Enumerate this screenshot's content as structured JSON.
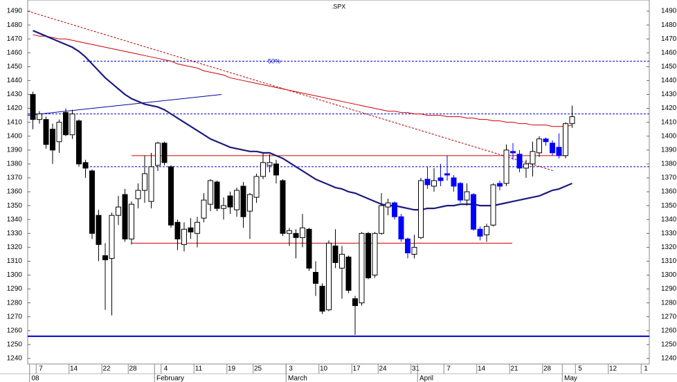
{
  "chart_data": {
    "type": "candlestick",
    "title": ".SPX",
    "categories": [
      null,
      "7",
      null,
      null,
      null,
      null,
      "14",
      null,
      null,
      null,
      null,
      "22",
      null,
      null,
      null,
      "28",
      null,
      null,
      null,
      null,
      "4",
      null,
      null,
      null,
      null,
      "11",
      null,
      null,
      null,
      null,
      "19",
      null,
      null,
      null,
      "25",
      null,
      null,
      null,
      null,
      "3",
      null,
      null,
      null,
      null,
      "10",
      null,
      null,
      null,
      null,
      "17",
      null,
      null,
      null,
      "24",
      null,
      null,
      null,
      null,
      "31",
      null,
      null,
      null,
      null,
      "7",
      null,
      null,
      null,
      null,
      "14",
      null,
      null,
      null,
      null,
      "21",
      null,
      null,
      null,
      null,
      "28",
      null,
      null,
      null,
      null,
      "5",
      null,
      null,
      null,
      null,
      "12",
      null,
      null,
      null,
      null,
      "1",
      null
    ],
    "month_categories": [
      "08",
      null,
      null,
      null,
      null,
      null,
      null,
      null,
      null,
      null,
      null,
      null,
      null,
      null,
      null,
      null,
      null,
      null,
      null,
      "February",
      null,
      null,
      null,
      null,
      null,
      null,
      null,
      null,
      null,
      null,
      null,
      null,
      null,
      null,
      null,
      null,
      null,
      null,
      null,
      "March",
      null,
      null,
      null,
      null,
      null,
      null,
      null,
      null,
      null,
      null,
      null,
      null,
      null,
      null,
      null,
      null,
      null,
      null,
      null,
      "April",
      null,
      null,
      null,
      null,
      null,
      null,
      null,
      null,
      null,
      null,
      null,
      null,
      null,
      null,
      null,
      null,
      null,
      null,
      null,
      null,
      null,
      "May",
      null,
      null,
      null,
      null,
      null,
      null,
      null,
      null,
      null,
      null,
      null,
      null,
      null
    ],
    "open": [
      1430,
      1412,
      1412,
      1405,
      1396,
      1417,
      1401,
      1411,
      1381,
      1375,
      1343,
      1314,
      1312,
      1343,
      1358,
      1326,
      1355,
      1361,
      1353,
      1379,
      1395,
      1378,
      1338,
      1322,
      1334,
      1330,
      1341,
      1351,
      1367,
      1348,
      1357,
      1347,
      1364,
      1346,
      1356,
      1371,
      1379,
      1380,
      1368,
      1330,
      1330,
      1327,
      1333,
      1302,
      1292,
      1275,
      1321,
      1305,
      1313,
      1283,
      1280,
      1330,
      1300,
      1330,
      1349,
      1352,
      1342,
      1326,
      1315,
      1327,
      1369,
      1364,
      1370,
      1373,
      1370,
      1366,
      1354,
      1358,
      1333,
      1329,
      1336,
      1366,
      1366,
      1389,
      1387,
      1377,
      1380,
      1388,
      1398,
      1395,
      1392,
      1386,
      1409,
      null,
      null,
      null,
      null,
      null,
      null,
      null,
      null,
      null,
      null,
      null,
      null
    ],
    "high": [
      1432,
      1418,
      1414,
      1409,
      1412,
      1420,
      1419,
      1412,
      1383,
      1376,
      1347,
      1323,
      1345,
      1357,
      1362,
      1353,
      1366,
      1386,
      1388,
      1396,
      1396,
      1379,
      1340,
      1338,
      1341,
      1342,
      1359,
      1369,
      1368,
      1356,
      1360,
      1363,
      1367,
      1359,
      1373,
      1388,
      1387,
      1383,
      1369,
      1334,
      1333,
      1344,
      1334,
      1310,
      1294,
      1325,
      1333,
      1321,
      1314,
      1285,
      1331,
      1331,
      1331,
      1359,
      1355,
      1353,
      1344,
      1327,
      1329,
      1370,
      1378,
      1377,
      1380,
      1386,
      1372,
      1367,
      1366,
      1359,
      1335,
      1337,
      1366,
      1368,
      1394,
      1395,
      1390,
      1383,
      1396,
      1400,
      1399,
      1397,
      1402,
      1410,
      1422,
      null,
      null,
      null,
      null,
      null,
      null,
      null,
      null,
      null,
      null,
      null,
      null
    ],
    "low": [
      1405,
      1409,
      1391,
      1380,
      1388,
      1400,
      1398,
      1378,
      1370,
      1326,
      1310,
      1275,
      1271,
      1336,
      1324,
      1322,
      1348,
      1352,
      1348,
      1375,
      1379,
      1334,
      1318,
      1317,
      1326,
      1320,
      1338,
      1346,
      1346,
      1340,
      1344,
      1342,
      1334,
      1326,
      1352,
      1369,
      1374,
      1366,
      1328,
      1321,
      1312,
      1320,
      1303,
      1285,
      1272,
      1274,
      1305,
      1283,
      1287,
      1257,
      1278,
      1297,
      1298,
      1329,
      1343,
      1340,
      1324,
      1312,
      1312,
      1326,
      1362,
      1360,
      1364,
      1368,
      1360,
      1352,
      1350,
      1332,
      1325,
      1324,
      1335,
      1361,
      1364,
      1383,
      1374,
      1370,
      1371,
      1385,
      1393,
      1386,
      1384,
      1384,
      1406,
      null,
      null,
      null,
      null,
      null,
      null,
      null,
      null,
      null,
      null,
      null,
      null
    ],
    "close": [
      1412,
      1416,
      1394,
      1390,
      1410,
      1401,
      1416,
      1380,
      1377,
      1330,
      1322,
      1311,
      1343,
      1349,
      1326,
      1351,
      1361,
      1373,
      1378,
      1395,
      1381,
      1336,
      1326,
      1333,
      1331,
      1338,
      1354,
      1368,
      1348,
      1350,
      1349,
      1361,
      1342,
      1358,
      1371,
      1381,
      1381,
      1372,
      1330,
      1332,
      1327,
      1334,
      1305,
      1294,
      1274,
      1323,
      1309,
      1315,
      1289,
      1278,
      1330,
      1298,
      1330,
      1350,
      1352,
      1342,
      1326,
      1316,
      1320,
      1368,
      1365,
      1368,
      1368,
      1372,
      1364,
      1354,
      1360,
      1333,
      1328,
      1335,
      1365,
      1364,
      1390,
      1388,
      1377,
      1380,
      1389,
      1398,
      1396,
      1388,
      1386,
      1409,
      1414,
      null,
      null,
      null,
      null,
      null,
      null,
      null,
      null,
      null,
      null,
      null,
      null
    ],
    "colors": [
      "#000",
      "#fff",
      "#000",
      "#000",
      "#fff",
      "#000",
      "#fff",
      "#000",
      "#000",
      "#000",
      "#000",
      "#000",
      "#fff",
      "#fff",
      "#000",
      "#fff",
      "#fff",
      "#fff",
      "#fff",
      "#fff",
      "#000",
      "#000",
      "#000",
      "#fff",
      "#000",
      "#fff",
      "#fff",
      "#fff",
      "#000",
      "#fff",
      "#000",
      "#fff",
      "#000",
      "#fff",
      "#fff",
      "#fff",
      "#fff",
      "#000",
      "#000",
      "#fff",
      "#000",
      "#fff",
      "#000",
      "#000",
      "#000",
      "#fff",
      "#000",
      "#fff",
      "#000",
      "#000",
      "#fff",
      "#000",
      "#fff",
      "#fff",
      "#fff",
      "#00f",
      "#00f",
      "#00f",
      "#fff",
      "#fff",
      "#00f",
      "#fff",
      "#00f",
      "#00f",
      "#00f",
      "#00f",
      "#fff",
      "#00f",
      "#00f",
      "#fff",
      "#fff",
      "#00f",
      "#fff",
      "#00f",
      "#00f",
      "#fff",
      "#fff",
      "#fff",
      "#00f",
      "#00f",
      "#00f",
      "#fff",
      "#fff",
      null,
      null,
      null,
      null,
      null,
      null,
      null,
      null,
      null,
      null,
      null,
      null
    ],
    "moving_averages": [
      {
        "color": "#cc0000",
        "width": 1,
        "values": [
          1473,
          1472,
          1472,
          1471,
          1470,
          1470,
          1469,
          1468,
          1467,
          1466,
          1465,
          1464,
          1463,
          1462,
          1461,
          1460,
          1459,
          1458,
          1457,
          1456,
          1455,
          1454,
          1452,
          1451,
          1450,
          1449,
          1447,
          1446,
          1445,
          1444,
          1442,
          1441,
          1440,
          1439,
          1438,
          1437,
          1436,
          1435,
          1434,
          1433,
          1432,
          1431,
          1430,
          1429,
          1428,
          1427,
          1426,
          1425,
          1424,
          1423,
          1422,
          1421,
          1420,
          1419,
          1418,
          1418,
          1417,
          1417,
          1416,
          1416,
          1415,
          1415,
          1415,
          1414,
          1414,
          1414,
          1413,
          1413,
          1412,
          1412,
          1411,
          1411,
          1410,
          1410,
          1409,
          1409,
          1408,
          1408,
          1408,
          1407,
          1407,
          1407,
          1408,
          null,
          null,
          null,
          null,
          null,
          null,
          null,
          null,
          null,
          null,
          null,
          null
        ]
      },
      {
        "color": "#1a1a80",
        "width": 2.2,
        "values": [
          1476,
          1474,
          1472,
          1470,
          1468,
          1466,
          1464,
          1461,
          1457,
          1452,
          1447,
          1442,
          1438,
          1434,
          1430,
          1427,
          1425,
          1423,
          1422,
          1421,
          1419,
          1416,
          1413,
          1410,
          1407,
          1404,
          1401,
          1398,
          1396,
          1394,
          1392,
          1391,
          1390,
          1389,
          1389,
          1388,
          1388,
          1386,
          1384,
          1381,
          1378,
          1375,
          1372,
          1369,
          1367,
          1365,
          1363,
          1362,
          1360,
          1359,
          1357,
          1355,
          1353,
          1351,
          1350,
          1350,
          1349,
          1348,
          1347,
          1347,
          1348,
          1348,
          1349,
          1350,
          1350,
          1351,
          1351,
          1351,
          1350,
          1350,
          1350,
          1351,
          1352,
          1353,
          1354,
          1355,
          1356,
          1357,
          1359,
          1361,
          1362,
          1364,
          1366,
          null,
          null,
          null,
          null,
          null,
          null,
          null,
          null,
          null,
          null,
          null,
          null
        ]
      }
    ],
    "levels": [
      {
        "value": 1454,
        "color": "#0000cc",
        "style": "dashed",
        "label": "50%"
      },
      {
        "value": 1416,
        "color": "#0000cc",
        "style": "dashed"
      },
      {
        "value": 1378,
        "color": "#0000cc",
        "style": "dashed"
      },
      {
        "value": 1386,
        "color": "#cc0000",
        "style": "solid"
      },
      {
        "value": 1323,
        "color": "#cc0000",
        "style": "solid"
      },
      {
        "value": 1256,
        "color": "#0000cc",
        "style": "solid"
      }
    ],
    "trendlines": [
      {
        "values": [
          1490,
          1375
        ],
        "color": "#aa0000",
        "style": "dashed"
      },
      {
        "values": [
          1415,
          1430
        ],
        "color": "#0000aa",
        "style": "solid"
      }
    ],
    "ylim": [
      1236,
      1498
    ],
    "yticks": [
      1240,
      1250,
      1260,
      1270,
      1280,
      1290,
      1300,
      1310,
      1320,
      1330,
      1340,
      1350,
      1360,
      1370,
      1380,
      1390,
      1400,
      1410,
      1420,
      1430,
      1440,
      1450,
      1460,
      1470,
      1480,
      1490
    ]
  }
}
